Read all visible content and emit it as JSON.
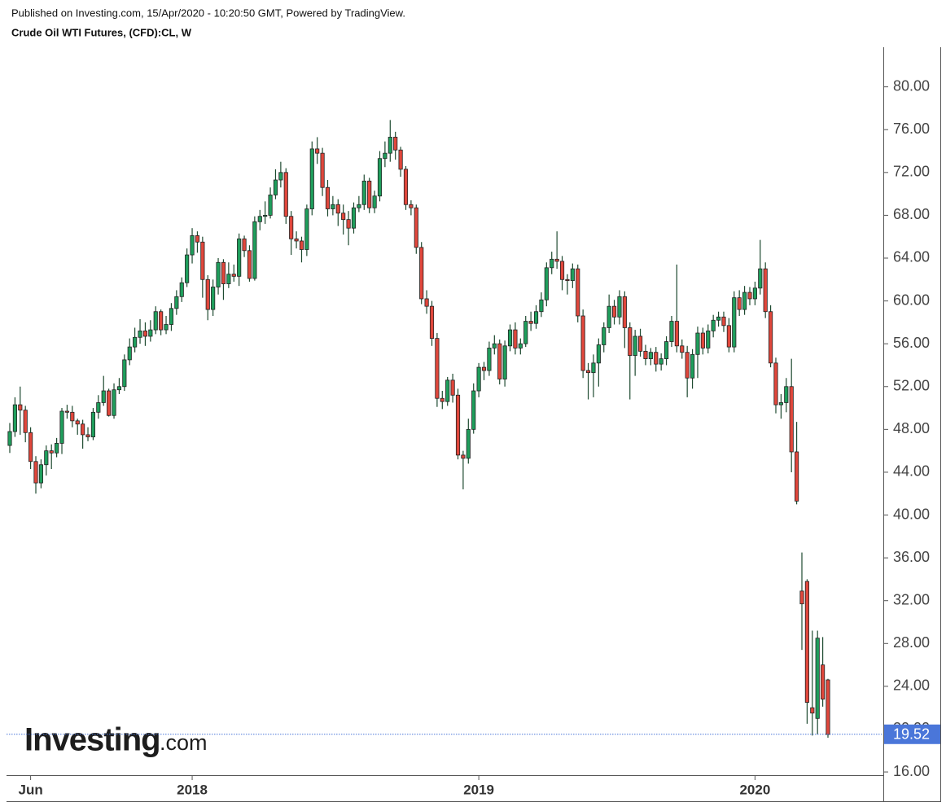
{
  "header": {
    "published": "Published on Investing.com, 15/Apr/2020 - 10:20:50 GMT, Powered by TradingView.",
    "instrument": "Crude Oil WTI Futures, (CFD):CL, W"
  },
  "logo": {
    "brand": "Investing",
    "suffix": ".com"
  },
  "chart_data": {
    "type": "candlestick",
    "up_color": "#1f9e5c",
    "down_color": "#e0473c",
    "wick_color": "#1e4a30",
    "last_price_color": "#4a76d9",
    "ylim": [
      15.7,
      83.7
    ],
    "yticks": [
      {
        "value": 16,
        "label": "16.00"
      },
      {
        "value": 20,
        "label": "20.00"
      },
      {
        "value": 24,
        "label": "24.00"
      },
      {
        "value": 28,
        "label": "28.00"
      },
      {
        "value": 32,
        "label": "32.00"
      },
      {
        "value": 36,
        "label": "36.00"
      },
      {
        "value": 40,
        "label": "40.00"
      },
      {
        "value": 44,
        "label": "44.00"
      },
      {
        "value": 48,
        "label": "48.00"
      },
      {
        "value": 52,
        "label": "52.00"
      },
      {
        "value": 56,
        "label": "56.00"
      },
      {
        "value": 60,
        "label": "60.00"
      },
      {
        "value": 64,
        "label": "64.00"
      },
      {
        "value": 68,
        "label": "68.00"
      },
      {
        "value": 72,
        "label": "72.00"
      },
      {
        "value": 76,
        "label": "76.00"
      },
      {
        "value": 80,
        "label": "80.00"
      }
    ],
    "last_price": 19.52,
    "categories": [
      null,
      null,
      null,
      null,
      "Jun",
      null,
      null,
      null,
      null,
      null,
      null,
      null,
      null,
      null,
      null,
      null,
      null,
      null,
      null,
      null,
      null,
      null,
      null,
      null,
      null,
      null,
      null,
      null,
      null,
      null,
      null,
      null,
      null,
      null,
      null,
      "2018",
      null,
      null,
      null,
      null,
      null,
      null,
      null,
      null,
      null,
      null,
      null,
      null,
      null,
      null,
      null,
      null,
      null,
      null,
      null,
      null,
      null,
      null,
      null,
      null,
      null,
      null,
      null,
      null,
      null,
      null,
      null,
      null,
      null,
      null,
      null,
      null,
      null,
      null,
      null,
      null,
      null,
      null,
      null,
      null,
      null,
      null,
      null,
      null,
      null,
      null,
      null,
      null,
      null,
      null,
      "2019",
      null,
      null,
      null,
      null,
      null,
      null,
      null,
      null,
      null,
      null,
      null,
      null,
      null,
      null,
      null,
      null,
      null,
      null,
      null,
      null,
      null,
      null,
      null,
      null,
      null,
      null,
      null,
      null,
      null,
      null,
      null,
      null,
      null,
      null,
      null,
      null,
      null,
      null,
      null,
      null,
      null,
      null,
      null,
      null,
      null,
      null,
      null,
      null,
      null,
      null,
      null,
      null,
      "2020",
      null,
      null,
      null,
      null,
      null,
      null,
      null,
      null,
      null,
      null,
      null,
      null,
      null,
      null
    ],
    "open": [
      46.5,
      47.8,
      50.3,
      49.8,
      47.7,
      45.0,
      43.0,
      44.7,
      46.0,
      45.8,
      46.7,
      49.7,
      49.6,
      48.8,
      48.5,
      47.5,
      47.3,
      49.6,
      50.5,
      51.6,
      49.3,
      51.7,
      52.0,
      54.5,
      55.7,
      56.6,
      57.2,
      56.7,
      57.3,
      59.0,
      57.3,
      57.8,
      59.3,
      60.4,
      61.7,
      64.3,
      66.1,
      65.5,
      62.0,
      59.2,
      61.3,
      63.6,
      61.6,
      62.5,
      62.3,
      65.8,
      64.7,
      62.1,
      67.4,
      67.9,
      68.0,
      69.9,
      71.3,
      72.0,
      67.9,
      65.8,
      65.6,
      64.8,
      68.6,
      74.2,
      73.8,
      70.6,
      68.6,
      69.0,
      68.2,
      67.6,
      66.8,
      68.7,
      69.0,
      71.2,
      68.7,
      69.8,
      73.3,
      73.8,
      75.3,
      74.1,
      72.3,
      69.0,
      68.7,
      65.0,
      60.2,
      59.5,
      56.5,
      50.9,
      50.6,
      52.6,
      51.2,
      45.6,
      45.3,
      48.0,
      51.6,
      53.8,
      53.5,
      55.6,
      56.0,
      52.7,
      55.8,
      57.3,
      55.6,
      56.0,
      58.1,
      57.9,
      59.0,
      60.1,
      63.1,
      63.9,
      63.7,
      62.0,
      61.9,
      63.0,
      58.6,
      53.5,
      53.3,
      54.2,
      55.9,
      57.5,
      59.5,
      58.5,
      60.4,
      57.5,
      54.9,
      56.7,
      55.3,
      54.6,
      55.2,
      54.1,
      54.6,
      56.2,
      58.1,
      55.8,
      55.2,
      52.8,
      55.0,
      57.0,
      55.6,
      57.2,
      58.2,
      58.5,
      57.7,
      55.7,
      60.3,
      59.2,
      60.8,
      60.2,
      61.2,
      63.0,
      59.0,
      54.2,
      50.3,
      50.5,
      52.0,
      45.9,
      32.9,
      33.8,
      22.0,
      21.0,
      26.0,
      24.6
    ],
    "high": [
      48.6,
      51.0,
      52.0,
      50.2,
      48.2,
      45.5,
      45.2,
      46.5,
      46.6,
      47.2,
      50.0,
      50.3,
      50.2,
      49.0,
      48.9,
      48.2,
      50.0,
      51.2,
      53.0,
      51.8,
      52.3,
      52.8,
      55.0,
      56.5,
      57.5,
      58.3,
      58.0,
      58.2,
      59.5,
      59.2,
      58.6,
      59.8,
      61.0,
      62.2,
      64.9,
      66.8,
      66.5,
      66.0,
      62.4,
      62.0,
      64.0,
      63.9,
      63.6,
      63.4,
      66.3,
      66.1,
      65.2,
      67.9,
      68.5,
      69.3,
      70.6,
      72.3,
      73.0,
      72.4,
      68.4,
      66.5,
      66.0,
      69.0,
      74.9,
      75.3,
      74.3,
      71.3,
      69.8,
      69.5,
      69.0,
      68.4,
      69.2,
      69.8,
      71.8,
      71.5,
      70.3,
      74.0,
      74.9,
      76.9,
      75.8,
      74.4,
      72.6,
      69.4,
      69.0,
      65.5,
      61.0,
      60.0,
      57.0,
      51.6,
      52.9,
      53.2,
      51.8,
      46.0,
      49.0,
      52.3,
      54.2,
      54.3,
      56.2,
      56.8,
      56.4,
      56.3,
      57.8,
      58.0,
      56.5,
      58.6,
      59.0,
      59.6,
      60.8,
      63.6,
      64.6,
      66.5,
      64.2,
      62.5,
      63.5,
      63.4,
      59.2,
      54.2,
      55.0,
      56.5,
      58.0,
      60.6,
      60.1,
      61.0,
      60.9,
      58.0,
      57.3,
      57.4,
      55.9,
      55.6,
      55.7,
      55.1,
      56.7,
      58.6,
      63.4,
      56.4,
      55.8,
      55.5,
      57.6,
      57.5,
      57.8,
      58.7,
      59.0,
      59.0,
      58.4,
      60.9,
      61.0,
      61.4,
      61.3,
      61.8,
      65.7,
      63.6,
      59.6,
      54.7,
      51.3,
      52.8,
      54.6,
      48.7,
      36.5,
      34.0,
      29.2,
      29.2,
      28.6,
      24.7
    ],
    "low": [
      45.8,
      47.3,
      47.5,
      46.8,
      44.3,
      42.0,
      42.5,
      43.7,
      44.3,
      45.4,
      45.7,
      49.0,
      48.2,
      47.5,
      46.2,
      46.9,
      47.0,
      49.0,
      50.2,
      49.2,
      49.0,
      51.3,
      51.6,
      54.0,
      55.2,
      56.0,
      55.8,
      56.2,
      56.9,
      56.8,
      56.9,
      57.2,
      58.7,
      59.9,
      61.3,
      63.5,
      64.5,
      60.3,
      58.2,
      58.6,
      60.6,
      60.1,
      61.2,
      61.8,
      61.4,
      64.1,
      61.8,
      61.9,
      66.6,
      67.2,
      67.7,
      69.5,
      70.6,
      67.2,
      64.3,
      64.9,
      63.6,
      64.2,
      68.0,
      72.8,
      69.8,
      67.9,
      68.0,
      67.0,
      66.2,
      65.2,
      66.3,
      68.3,
      68.5,
      68.2,
      68.2,
      69.3,
      72.5,
      73.0,
      73.2,
      71.6,
      68.5,
      68.0,
      64.4,
      59.7,
      58.8,
      55.8,
      50.1,
      49.9,
      50.2,
      50.5,
      45.2,
      42.4,
      44.8,
      47.6,
      51.0,
      52.6,
      53.0,
      55.0,
      52.2,
      52.0,
      55.3,
      55.0,
      55.0,
      55.7,
      57.2,
      57.4,
      58.5,
      59.5,
      62.5,
      63.0,
      61.0,
      60.6,
      61.2,
      58.0,
      52.8,
      50.8,
      51.0,
      52.0,
      55.2,
      57.0,
      57.8,
      57.8,
      55.6,
      50.8,
      53.0,
      54.8,
      54.0,
      54.0,
      53.4,
      53.5,
      54.0,
      55.7,
      55.2,
      54.6,
      51.0,
      51.8,
      52.8,
      55.0,
      55.1,
      56.6,
      57.6,
      57.1,
      55.2,
      55.2,
      58.6,
      58.7,
      59.6,
      59.6,
      60.6,
      58.4,
      53.8,
      49.5,
      49.0,
      49.6,
      44.0,
      41.0,
      27.4,
      20.5,
      19.4,
      19.5,
      22.1,
      19.2
    ],
    "close": [
      47.8,
      50.3,
      49.8,
      47.7,
      45.0,
      43.0,
      44.7,
      46.0,
      45.8,
      46.7,
      49.7,
      49.6,
      48.8,
      48.5,
      47.5,
      47.3,
      49.6,
      50.5,
      51.6,
      49.3,
      51.7,
      52.0,
      54.5,
      55.7,
      56.6,
      57.2,
      56.7,
      57.3,
      59.0,
      57.3,
      57.8,
      59.3,
      60.4,
      61.7,
      64.3,
      66.1,
      65.5,
      62.0,
      59.2,
      61.3,
      63.6,
      61.6,
      62.5,
      62.3,
      65.8,
      64.7,
      62.1,
      67.4,
      67.9,
      68.0,
      69.9,
      71.3,
      72.0,
      67.9,
      65.8,
      65.6,
      64.8,
      68.6,
      74.2,
      73.8,
      70.6,
      68.6,
      69.0,
      68.2,
      67.6,
      66.8,
      68.7,
      69.0,
      71.2,
      68.7,
      69.8,
      73.3,
      73.8,
      75.3,
      74.1,
      72.3,
      69.0,
      68.7,
      65.0,
      60.2,
      59.5,
      56.5,
      50.9,
      50.6,
      52.6,
      51.2,
      45.6,
      45.3,
      48.0,
      51.6,
      53.8,
      53.5,
      55.6,
      56.0,
      52.7,
      55.8,
      57.3,
      55.6,
      56.0,
      58.1,
      57.9,
      59.0,
      60.1,
      63.1,
      63.9,
      63.7,
      62.0,
      61.9,
      63.0,
      58.6,
      53.5,
      53.3,
      54.2,
      55.9,
      57.5,
      59.5,
      58.5,
      60.4,
      57.5,
      54.9,
      56.7,
      55.3,
      54.6,
      55.2,
      54.1,
      54.6,
      56.2,
      58.1,
      55.8,
      55.2,
      52.8,
      55.0,
      57.0,
      55.6,
      57.2,
      58.2,
      58.5,
      57.7,
      55.7,
      60.3,
      59.2,
      60.8,
      60.2,
      61.2,
      63.0,
      59.0,
      54.2,
      50.3,
      50.5,
      52.0,
      45.9,
      41.3,
      31.7,
      22.5,
      21.5,
      28.5,
      22.8,
      19.5
    ]
  }
}
